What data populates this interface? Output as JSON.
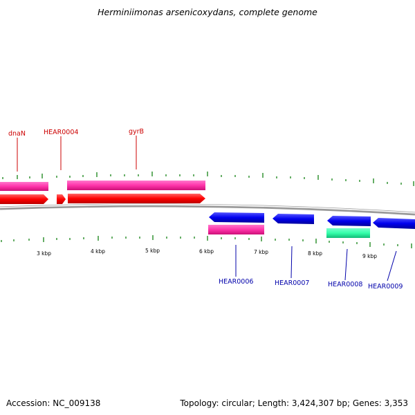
{
  "title": "Herminiimonas arsenicoxydans, complete genome",
  "accession": "Accession: NC_009138",
  "summary": "Topology: circular; Length: 3,424,307 bp; Genes: 3,353",
  "colors": {
    "forward_label": "#cc0000",
    "reverse_label": "#0000aa",
    "cds_forward": "#ff0000",
    "cds_reverse": "#0000ee",
    "gene_pink": "#ff33aa",
    "gene_teal": "#33ffaa",
    "tick_green": "#007700",
    "backbone": "#888888"
  },
  "scale_ticks": [
    "3 kbp",
    "4 kbp",
    "5 kbp",
    "6 kbp",
    "7 kbp",
    "8 kbp",
    "9 kbp"
  ],
  "gene_labels": {
    "forward": [
      "dnaN",
      "HEAR0004",
      "gyrB"
    ],
    "reverse": [
      "HEAR0006",
      "HEAR0007",
      "HEAR0008",
      "HEAR0009"
    ]
  }
}
